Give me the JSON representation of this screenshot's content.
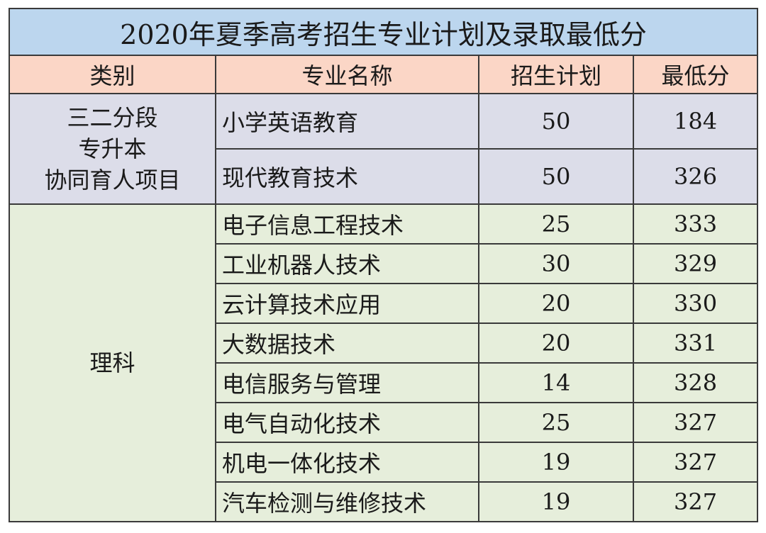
{
  "title": "2020年夏季高考招生专业计划及录取最低分",
  "headers": {
    "category": "类别",
    "major": "专业名称",
    "plan": "招生计划",
    "min_score": "最低分"
  },
  "groups": [
    {
      "category_lines": [
        "三二分段",
        "专升本",
        "协同育人项目"
      ],
      "rows": [
        {
          "major": "小学英语教育",
          "plan": "50",
          "min_score": "184"
        },
        {
          "major": "现代教育技术",
          "plan": "50",
          "min_score": "326"
        }
      ]
    },
    {
      "category_lines": [
        "理科"
      ],
      "rows": [
        {
          "major": "电子信息工程技术",
          "plan": "25",
          "min_score": "333"
        },
        {
          "major": "工业机器人技术",
          "plan": "30",
          "min_score": "329"
        },
        {
          "major": "云计算技术应用",
          "plan": "20",
          "min_score": "330"
        },
        {
          "major": "大数据技术",
          "plan": "20",
          "min_score": "331"
        },
        {
          "major": "电信服务与管理",
          "plan": "14",
          "min_score": "328"
        },
        {
          "major": "电气自动化技术",
          "plan": "25",
          "min_score": "327"
        },
        {
          "major": "机电一体化技术",
          "plan": "19",
          "min_score": "327"
        },
        {
          "major": "汽车检测与维修技术",
          "plan": "19",
          "min_score": "327"
        }
      ]
    }
  ]
}
